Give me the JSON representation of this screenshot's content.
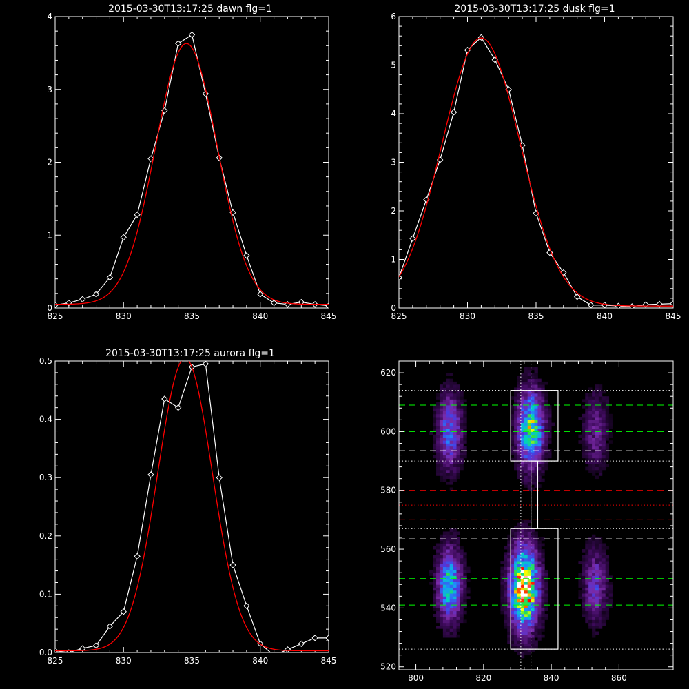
{
  "chart_data": [
    {
      "type": "line",
      "title": "2015-03-30T13:17:25 dawn flg=1",
      "xlim": [
        825,
        845
      ],
      "ylim": [
        0,
        4
      ],
      "xticks": [
        825,
        830,
        835,
        840,
        845
      ],
      "yticks": [
        0,
        1,
        2,
        3,
        4
      ],
      "series": [
        {
          "role": "data",
          "color": "#ffffff",
          "marker": "diamond",
          "x": [
            825,
            826,
            827,
            828,
            829,
            830,
            831,
            832,
            833,
            834,
            835,
            836,
            837,
            838,
            839,
            840,
            841,
            842,
            843,
            844,
            845
          ],
          "y": [
            0.04,
            0.07,
            0.12,
            0.19,
            0.42,
            0.97,
            1.28,
            2.05,
            2.71,
            3.63,
            3.75,
            2.94,
            2.06,
            1.31,
            0.72,
            0.19,
            0.07,
            0.05,
            0.08,
            0.05,
            0.03
          ]
        },
        {
          "role": "fit",
          "color": "#ff0000",
          "gauss": {
            "amp": 3.58,
            "center": 834.6,
            "sigma": 2.25,
            "base": 0.05,
            "xmin": 825,
            "xmax": 845
          }
        }
      ]
    },
    {
      "type": "line",
      "title": "2015-03-30T13:17:25 dusk flg=1",
      "xlim": [
        825,
        845
      ],
      "ylim": [
        0,
        6
      ],
      "xticks": [
        825,
        830,
        835,
        840,
        845
      ],
      "yticks": [
        0,
        1,
        2,
        3,
        4,
        5,
        6
      ],
      "series": [
        {
          "role": "data",
          "color": "#ffffff",
          "marker": "diamond",
          "x": [
            825,
            826,
            827,
            828,
            829,
            830,
            831,
            832,
            833,
            834,
            835,
            836,
            837,
            838,
            839,
            840,
            841,
            842,
            843,
            844,
            845
          ],
          "y": [
            0.63,
            1.43,
            2.23,
            3.05,
            4.03,
            5.31,
            5.57,
            5.11,
            4.5,
            3.35,
            1.95,
            1.14,
            0.73,
            0.23,
            0.06,
            0.06,
            0.04,
            0.03,
            0.07,
            0.08,
            0.09
          ]
        },
        {
          "role": "fit",
          "color": "#ff0000",
          "gauss": {
            "amp": 5.52,
            "center": 831.0,
            "sigma": 2.85,
            "base": 0.04,
            "xmin": 825,
            "xmax": 845
          }
        }
      ]
    },
    {
      "type": "line",
      "title": "2015-03-30T13:17:25 aurora flg=1",
      "xlim": [
        825,
        845
      ],
      "ylim": [
        0,
        0.5
      ],
      "xticks": [
        825,
        830,
        835,
        840,
        845
      ],
      "yticks": [
        0.0,
        0.1,
        0.2,
        0.3,
        0.4,
        0.5
      ],
      "ytick_labels": [
        "0.0",
        "0.1",
        "0.2",
        "0.3",
        "0.4",
        "0.5"
      ],
      "series": [
        {
          "role": "data",
          "color": "#ffffff",
          "marker": "diamond",
          "x": [
            825,
            826,
            827,
            828,
            829,
            830,
            831,
            832,
            833,
            834,
            835,
            836,
            837,
            838,
            839,
            840,
            841,
            842,
            843,
            844,
            845
          ],
          "y": [
            0.003,
            0.0,
            0.007,
            0.012,
            0.045,
            0.07,
            0.165,
            0.305,
            0.435,
            0.42,
            0.49,
            0.495,
            0.3,
            0.15,
            0.08,
            0.015,
            -0.005,
            0.005,
            0.015,
            0.025,
            0.025
          ]
        },
        {
          "role": "fit",
          "color": "#ff0000",
          "gauss": {
            "amp": 0.502,
            "center": 834.5,
            "sigma": 2.0,
            "base": 0.003,
            "xmin": 825,
            "xmax": 845
          }
        }
      ]
    },
    {
      "type": "heatmap",
      "title": "",
      "xlim": [
        795,
        876
      ],
      "ylim": [
        519,
        624
      ],
      "xticks": [
        800,
        820,
        840,
        860
      ],
      "yticks": [
        520,
        540,
        560,
        580,
        600,
        620
      ],
      "colormap": [
        "#000000",
        "#3c0a5a",
        "#7a2aa8",
        "#4a3ae0",
        "#1e90ff",
        "#00d0c0",
        "#30e040",
        "#ffff00",
        "#ff0000",
        "#ffffff"
      ],
      "blobs": [
        {
          "x": 810,
          "y": 548,
          "sx": 2.2,
          "sy": 7.5,
          "peak": 0.52
        },
        {
          "x": 810,
          "y": 600,
          "sx": 2.2,
          "sy": 8.0,
          "peak": 0.34
        },
        {
          "x": 832,
          "y": 547,
          "sx": 2.6,
          "sy": 8.5,
          "peak": 0.97
        },
        {
          "x": 834,
          "y": 601,
          "sx": 2.4,
          "sy": 8.0,
          "peak": 0.62
        },
        {
          "x": 853,
          "y": 548,
          "sx": 2.2,
          "sy": 7.5,
          "peak": 0.24
        },
        {
          "x": 853,
          "y": 600,
          "sx": 2.2,
          "sy": 8.0,
          "peak": 0.16
        }
      ],
      "noise_level": 0.05,
      "boxes": [
        {
          "x0": 828,
          "x1": 842,
          "y0": 590,
          "y1": 614,
          "color": "#ffffff"
        },
        {
          "x0": 828,
          "x1": 842,
          "y0": 526,
          "y1": 567,
          "color": "#ffffff"
        },
        {
          "x0": 834,
          "x1": 836,
          "y0": 567,
          "y1": 590,
          "color": "#ffffff"
        }
      ],
      "hlines": [
        {
          "y": 614,
          "color": "#ffffff",
          "style": "dotted"
        },
        {
          "y": 609,
          "color": "#00ff00",
          "style": "dashed"
        },
        {
          "y": 600,
          "color": "#00ff00",
          "style": "dashed"
        },
        {
          "y": 593.5,
          "color": "#ffffff",
          "style": "dashed"
        },
        {
          "y": 590,
          "color": "#ffffff",
          "style": "dotted"
        },
        {
          "y": 580,
          "color": "#ff0000",
          "style": "dashed"
        },
        {
          "y": 575,
          "color": "#ff0000",
          "style": "dotted"
        },
        {
          "y": 570,
          "color": "#ff0000",
          "style": "dashed"
        },
        {
          "y": 567,
          "color": "#ffffff",
          "style": "dotted"
        },
        {
          "y": 563.5,
          "color": "#ffffff",
          "style": "dashed"
        },
        {
          "y": 550,
          "color": "#00ff00",
          "style": "dashed"
        },
        {
          "y": 541,
          "color": "#00ff00",
          "style": "dashed"
        },
        {
          "y": 526,
          "color": "#ffffff",
          "style": "dotted"
        }
      ],
      "vlines": [
        {
          "x": 831,
          "color": "#ffffff",
          "style": "dotted"
        },
        {
          "x": 834,
          "color": "#ffffff",
          "style": "dotted"
        }
      ]
    }
  ]
}
